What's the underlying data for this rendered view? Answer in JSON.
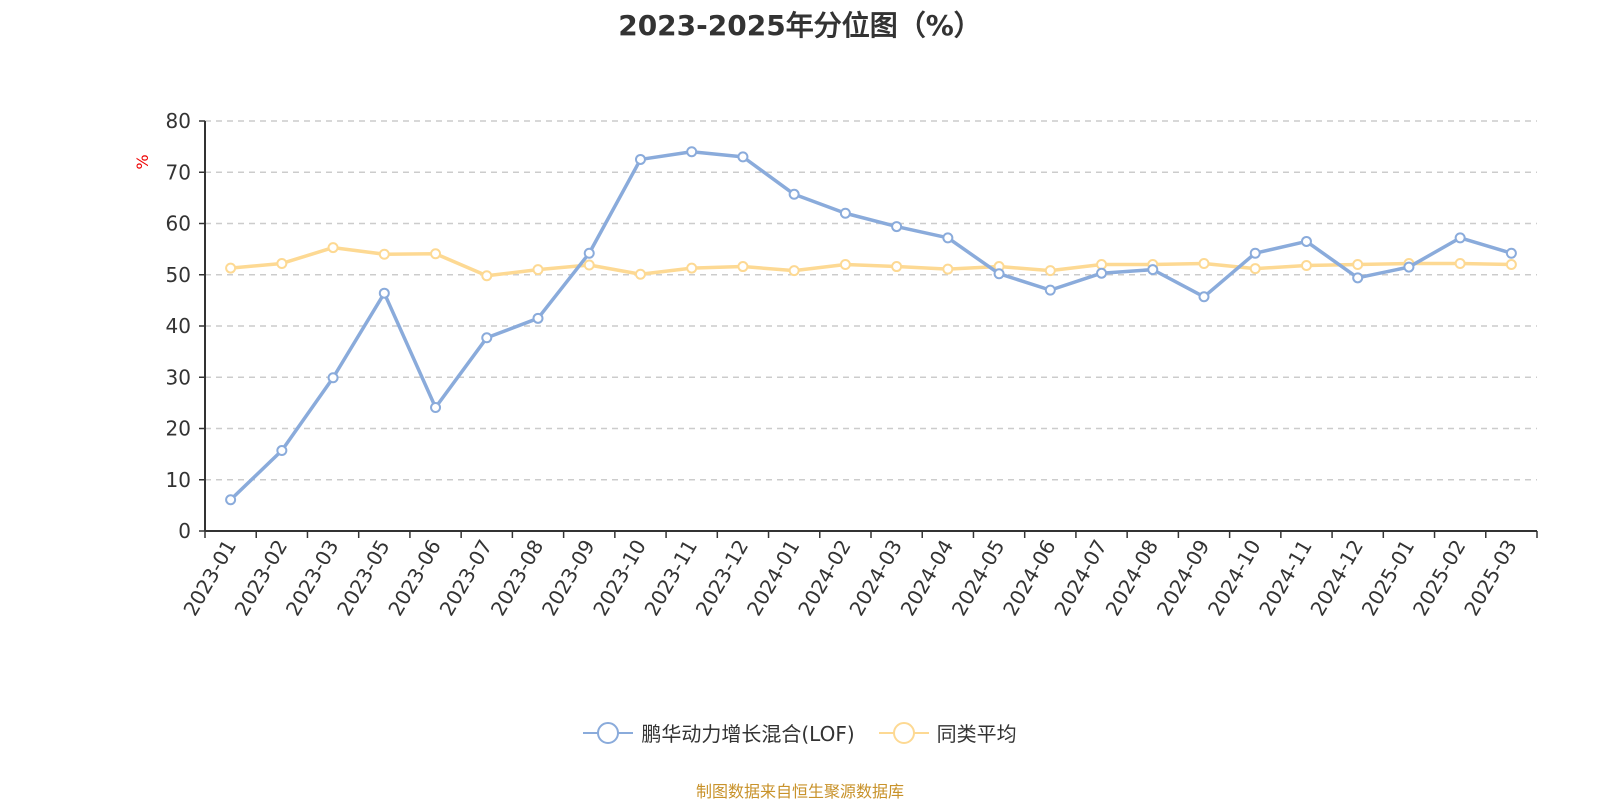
{
  "chart_data": {
    "type": "line",
    "title": "2023-2025年分位图（%）",
    "ylabel": "%",
    "xlabel": "",
    "ylim": [
      0,
      80
    ],
    "yticks": [
      0,
      10,
      20,
      30,
      40,
      50,
      60,
      70,
      80
    ],
    "grid": true,
    "legend_position": "bottom",
    "categories": [
      "2023-01",
      "2023-02",
      "2023-03",
      "2023-05",
      "2023-06",
      "2023-07",
      "2023-08",
      "2023-09",
      "2023-10",
      "2023-11",
      "2023-12",
      "2024-01",
      "2024-02",
      "2024-03",
      "2024-04",
      "2024-05",
      "2024-06",
      "2024-07",
      "2024-08",
      "2024-09",
      "2024-10",
      "2024-11",
      "2024-12",
      "2025-01",
      "2025-02",
      "2025-03"
    ],
    "series": [
      {
        "name": "鹏华动力增长混合(LOF)",
        "color": "#8aabdb",
        "values": [
          6.1,
          15.7,
          29.9,
          46.4,
          24.1,
          37.7,
          41.5,
          54.2,
          72.5,
          74.0,
          73.0,
          65.7,
          62.0,
          59.4,
          57.2,
          50.2,
          47.0,
          50.3,
          51.0,
          45.7,
          54.2,
          56.5,
          49.4,
          51.5,
          57.2,
          54.2
        ]
      },
      {
        "name": "同类平均",
        "color": "#fdd993",
        "values": [
          51.3,
          52.2,
          55.3,
          54.0,
          54.1,
          49.8,
          51.0,
          51.9,
          50.1,
          51.3,
          51.6,
          50.8,
          52.0,
          51.6,
          51.1,
          51.6,
          50.8,
          52.0,
          52.0,
          52.2,
          51.2,
          51.8,
          52.0,
          52.2,
          52.2,
          52.0
        ]
      }
    ]
  },
  "source": "制图数据来自恒生聚源数据库"
}
